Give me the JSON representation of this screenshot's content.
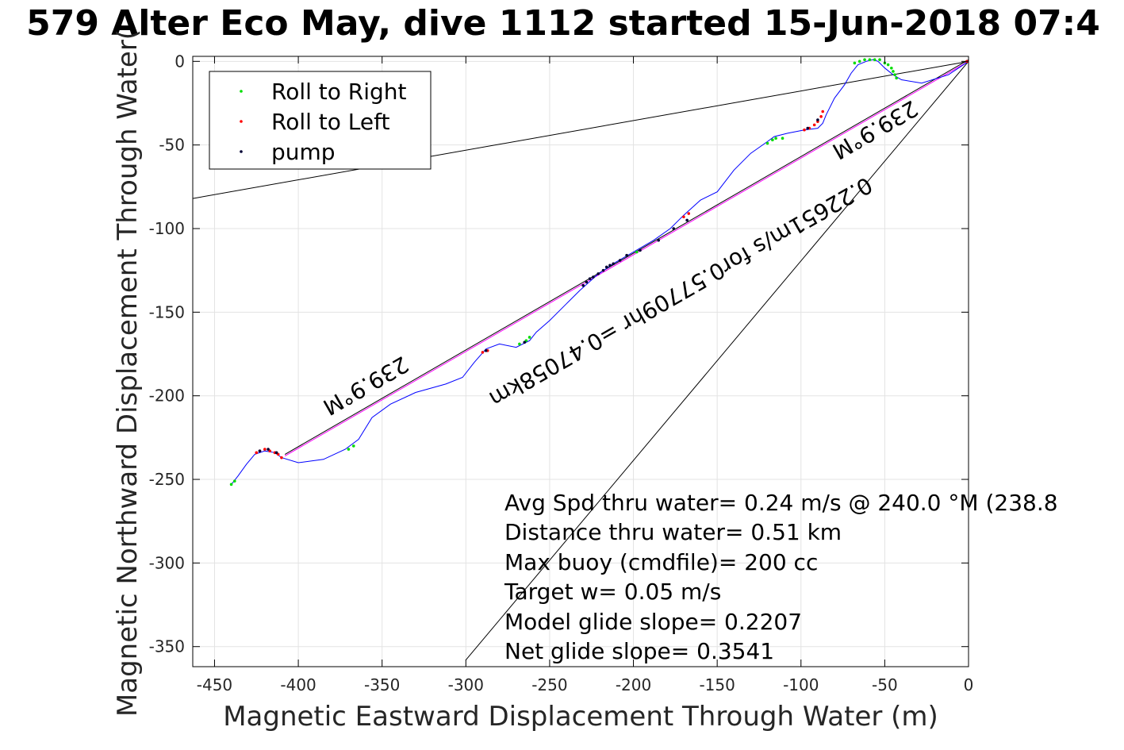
{
  "chart_data": {
    "type": "scatter",
    "title": "579 Alter Eco May, dive 1112 started 15-Jun-2018 07:4",
    "xlabel": "Magnetic Eastward Displacement Through Water (m)",
    "ylabel": "Magnetic Northward Displacement Through Water(",
    "xlim": [
      -463,
      0
    ],
    "ylim": [
      -362,
      3
    ],
    "xticks": [
      -450,
      -400,
      -350,
      -300,
      -250,
      -200,
      -150,
      -100,
      -50,
      0
    ],
    "yticks": [
      0,
      -50,
      -100,
      -150,
      -200,
      -250,
      -300,
      -350
    ],
    "grid": true,
    "legend": {
      "position": "top-left",
      "entries": [
        "Roll to Right",
        "Roll to Left",
        "pump"
      ]
    },
    "colors": {
      "track": "#0000ff",
      "roll_right": "#00dd00",
      "roll_left": "#ff0000",
      "pump": "#000033",
      "net": "#ff00ff",
      "guide": "#000000"
    },
    "track": [
      [
        0,
        0
      ],
      [
        -12,
        -8
      ],
      [
        -28,
        -13
      ],
      [
        -40,
        -11
      ],
      [
        -45,
        -8
      ],
      [
        -50,
        -4
      ],
      [
        -54,
        0
      ],
      [
        -57,
        1
      ],
      [
        -61,
        0
      ],
      [
        -66,
        -2
      ],
      [
        -70,
        -7
      ],
      [
        -74,
        -14
      ],
      [
        -80,
        -22
      ],
      [
        -85,
        -32
      ],
      [
        -87,
        -37
      ],
      [
        -90,
        -40
      ],
      [
        -98,
        -41
      ],
      [
        -108,
        -43
      ],
      [
        -116,
        -45
      ],
      [
        -120,
        -48
      ],
      [
        -130,
        -55
      ],
      [
        -140,
        -65
      ],
      [
        -150,
        -78
      ],
      [
        -160,
        -83
      ],
      [
        -170,
        -92
      ],
      [
        -178,
        -100
      ],
      [
        -188,
        -107
      ],
      [
        -200,
        -114
      ],
      [
        -212,
        -121
      ],
      [
        -222,
        -128
      ],
      [
        -232,
        -137
      ],
      [
        -240,
        -145
      ],
      [
        -250,
        -155
      ],
      [
        -258,
        -162
      ],
      [
        -262,
        -167
      ],
      [
        -270,
        -171
      ],
      [
        -280,
        -169
      ],
      [
        -288,
        -172
      ],
      [
        -295,
        -180
      ],
      [
        -302,
        -189
      ],
      [
        -312,
        -193
      ],
      [
        -330,
        -198
      ],
      [
        -345,
        -205
      ],
      [
        -356,
        -213
      ],
      [
        -364,
        -226
      ],
      [
        -372,
        -232
      ],
      [
        -385,
        -238
      ],
      [
        -400,
        -240
      ],
      [
        -410,
        -237
      ],
      [
        -414,
        -234
      ],
      [
        -420,
        -233
      ],
      [
        -426,
        -235
      ],
      [
        -431,
        -241
      ],
      [
        -436,
        -248
      ],
      [
        -440,
        -253
      ]
    ],
    "net_line": [
      [
        0,
        0
      ],
      [
        -408,
        -236
      ]
    ],
    "guide_lines": [
      [
        [
          0,
          0
        ],
        [
          -463,
          -82
        ]
      ],
      [
        [
          0,
          0
        ],
        [
          -300,
          -358
        ]
      ]
    ],
    "roll_right": [
      [
        -440,
        -253
      ],
      [
        -438,
        -251
      ],
      [
        -370,
        -232
      ],
      [
        -367,
        -230
      ],
      [
        -120,
        -49
      ],
      [
        -117,
        -47
      ],
      [
        -115,
        -46
      ],
      [
        -111,
        -46
      ],
      [
        -68,
        -1
      ],
      [
        -65,
        0
      ],
      [
        -62,
        1
      ],
      [
        -59,
        1
      ],
      [
        -56,
        1
      ],
      [
        -53,
        1
      ],
      [
        -50,
        -1
      ],
      [
        -48,
        -2
      ],
      [
        -46,
        -4
      ],
      [
        -45,
        -6
      ],
      [
        -44,
        -8
      ],
      [
        -43,
        -10
      ],
      [
        -268,
        -169
      ],
      [
        -264,
        -167
      ],
      [
        -262,
        -165
      ],
      [
        -198,
        -114
      ]
    ],
    "roll_left": [
      [
        -425,
        -234
      ],
      [
        -423,
        -233
      ],
      [
        -420,
        -232
      ],
      [
        -417,
        -233
      ],
      [
        -414,
        -234
      ],
      [
        -412,
        -235
      ],
      [
        -410,
        -237
      ],
      [
        -290,
        -174
      ],
      [
        -287,
        -173
      ],
      [
        -98,
        -41
      ],
      [
        -95,
        -40
      ],
      [
        -92,
        -38
      ],
      [
        -90,
        -36
      ],
      [
        -88,
        -33
      ],
      [
        -87,
        -30
      ],
      [
        -170,
        -93
      ],
      [
        -167,
        -91
      ],
      [
        -1,
        0
      ]
    ],
    "pump": [
      [
        -423,
        -233
      ],
      [
        -418,
        -232
      ],
      [
        -413,
        -234
      ],
      [
        -288,
        -173
      ],
      [
        -265,
        -168
      ],
      [
        -230,
        -134
      ],
      [
        -228,
        -132
      ],
      [
        -226,
        -130
      ],
      [
        -224,
        -129
      ],
      [
        -221,
        -127
      ],
      [
        -218,
        -125
      ],
      [
        -216,
        -123
      ],
      [
        -214,
        -122
      ],
      [
        -212,
        -121
      ],
      [
        -208,
        -119
      ],
      [
        -204,
        -116
      ],
      [
        -196,
        -113
      ],
      [
        -185,
        -107
      ],
      [
        -176,
        -100
      ],
      [
        -168,
        -95
      ],
      [
        -96,
        -40
      ],
      [
        -90,
        -35
      ]
    ],
    "annotations": [
      {
        "text": "239.9°M",
        "x": -362,
        "y": -190,
        "angle": 150.1
      },
      {
        "text": "0.22651m/s for0.57709hr =0.47058km",
        "x": -174,
        "y": -134,
        "angle": 150.1
      },
      {
        "text": "239.9°M",
        "x": -58,
        "y": -37,
        "angle": 150.1
      }
    ],
    "stats": [
      "Avg Spd thru water=  0.24 m/s @ 240.0 °M (238.8",
      "Distance thru water=  0.51 km",
      "Max buoy (cmdfile)= 200 cc",
      "Target w= 0.05 m/s",
      "Model glide slope= 0.2207",
      "Net glide slope= 0.3541"
    ]
  }
}
